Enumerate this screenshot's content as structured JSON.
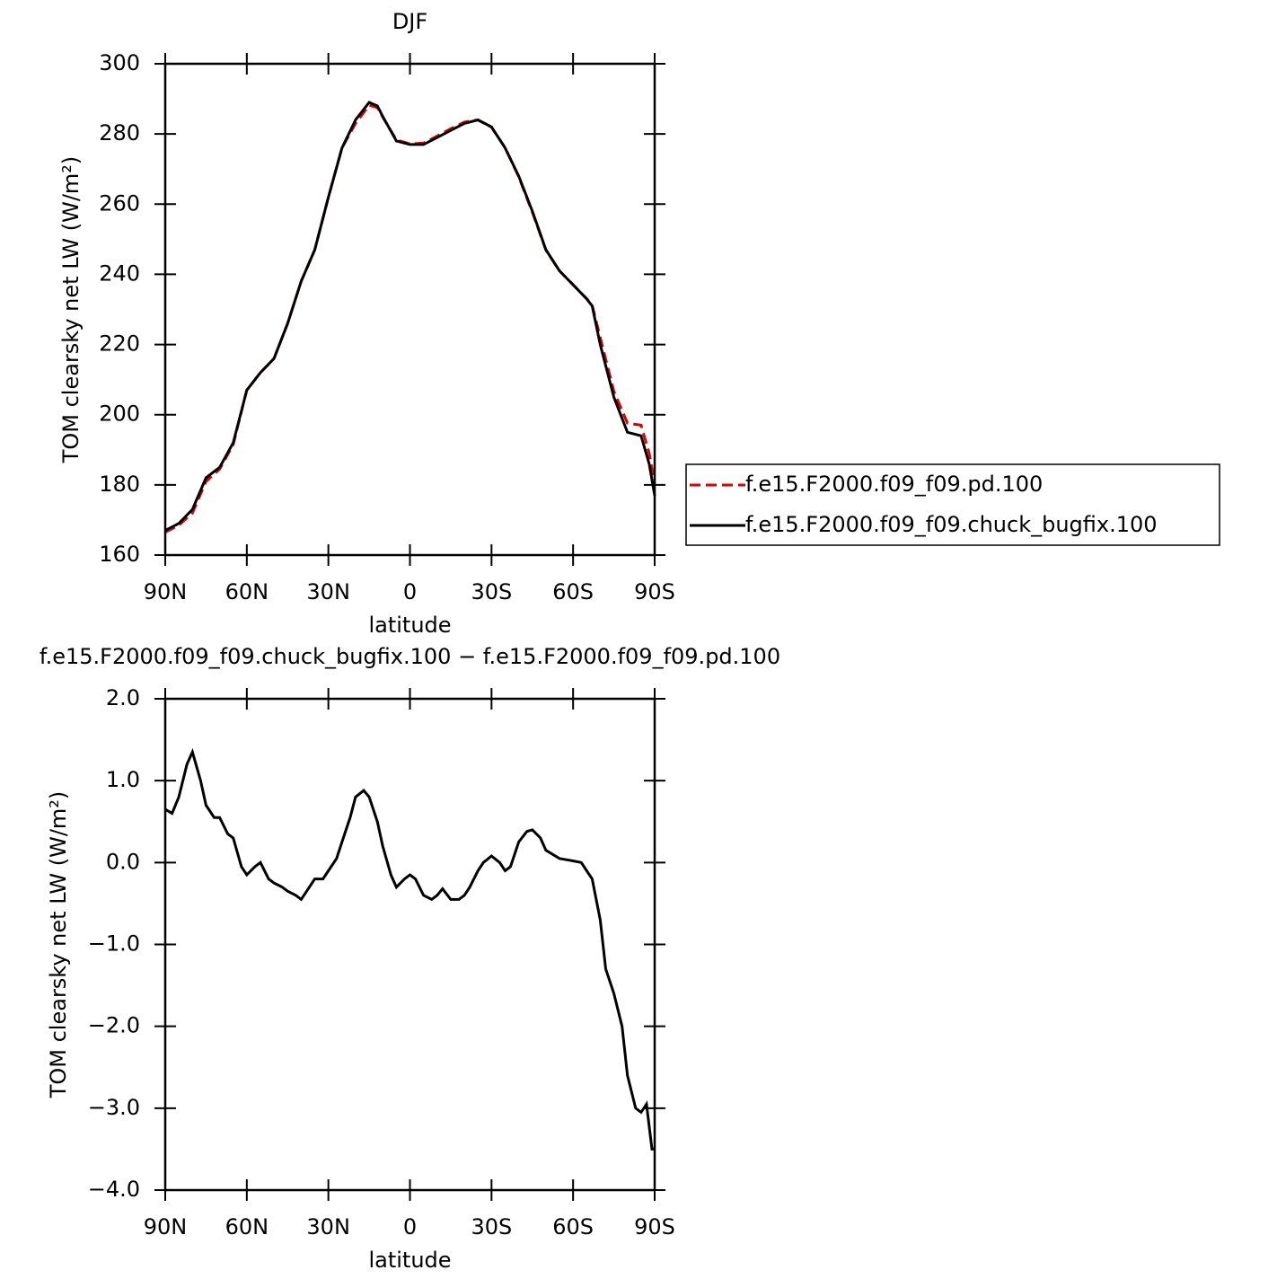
{
  "chart_data": [
    {
      "type": "line",
      "title": "DJF",
      "xlabel": "latitude",
      "ylabel": "TOM clearsky net LW (W/m²)",
      "x": [
        90,
        85,
        80,
        75,
        70,
        65,
        60,
        55,
        50,
        45,
        40,
        35,
        30,
        25,
        20,
        15,
        12,
        10,
        5,
        0,
        -5,
        -10,
        -15,
        -20,
        -25,
        -30,
        -35,
        -40,
        -45,
        -50,
        -55,
        -60,
        -65,
        -67,
        -70,
        -75,
        -80,
        -85,
        -88,
        -90
      ],
      "series": [
        {
          "name": "f.e15.F2000.f09_f09.pd.100",
          "color": "#e00000",
          "style": "dashed",
          "values": [
            166.5,
            168.5,
            172,
            181,
            184.5,
            191.5,
            207,
            212,
            216,
            226,
            238,
            247,
            262,
            276,
            283,
            288.2,
            287.5,
            284.8,
            278.3,
            277.2,
            277.4,
            279.4,
            281.5,
            283.4,
            284,
            281.9,
            276.1,
            267.8,
            257.7,
            246.9,
            241,
            237,
            233.1,
            231.2,
            222,
            206.6,
            197.6,
            197,
            189,
            180.5
          ]
        },
        {
          "name": "f.e15.F2000.f09_f09.chuck_bugfix.100",
          "color": "#000000",
          "style": "solid",
          "values": [
            167,
            169,
            173,
            182,
            185,
            192,
            207,
            212,
            216,
            226,
            238,
            247,
            262,
            276,
            284,
            289,
            288,
            285,
            278,
            277,
            277,
            279,
            281,
            283,
            284,
            282,
            276,
            268,
            258,
            247,
            241,
            237,
            233,
            231,
            220,
            205,
            195,
            194,
            186,
            177
          ]
        }
      ],
      "xlim": [
        90,
        -90
      ],
      "xticks": [
        {
          "value": 90,
          "label": "90N"
        },
        {
          "value": 60,
          "label": "60N"
        },
        {
          "value": 30,
          "label": "30N"
        },
        0,
        {
          "value": -30,
          "label": "30S"
        },
        {
          "value": -60,
          "label": "60S"
        },
        {
          "value": -90,
          "label": "90S"
        }
      ],
      "ylim": [
        160,
        300
      ],
      "yticks": [
        160,
        180,
        200,
        220,
        240,
        260,
        280,
        300
      ],
      "legend": "right"
    },
    {
      "type": "line",
      "title": "f.e15.F2000.f09_f09.chuck_bugfix.100 − f.e15.F2000.f09_f09.pd.100",
      "xlabel": "latitude",
      "ylabel": "TOM clearsky net LW (W/m²)",
      "x": [
        90,
        87.5,
        85,
        82,
        80,
        77,
        75,
        72,
        70,
        67,
        65,
        62,
        60,
        57,
        55,
        52,
        50,
        47,
        45,
        42,
        40,
        37,
        35,
        32,
        30,
        27,
        25,
        22,
        20,
        17,
        15,
        12,
        10,
        7,
        5,
        2,
        0,
        -2,
        -5,
        -8,
        -10,
        -12,
        -15,
        -18,
        -20,
        -22,
        -25,
        -27,
        -30,
        -33,
        -35,
        -37,
        -40,
        -43,
        -45,
        -48,
        -50,
        -55,
        -60,
        -63,
        -65,
        -67,
        -70,
        -72,
        -75,
        -78,
        -80,
        -83,
        -85,
        -87,
        -89,
        -90
      ],
      "values": [
        0.65,
        0.6,
        0.8,
        1.2,
        1.35,
        1.0,
        0.7,
        0.55,
        0.55,
        0.35,
        0.3,
        -0.05,
        -0.15,
        -0.05,
        0.0,
        -0.2,
        -0.25,
        -0.3,
        -0.35,
        -0.4,
        -0.45,
        -0.3,
        -0.2,
        -0.2,
        -0.1,
        0.05,
        0.25,
        0.55,
        0.8,
        0.88,
        0.8,
        0.5,
        0.2,
        -0.15,
        -0.3,
        -0.2,
        -0.15,
        -0.2,
        -0.4,
        -0.45,
        -0.4,
        -0.32,
        -0.45,
        -0.45,
        -0.4,
        -0.3,
        -0.1,
        0.0,
        0.08,
        0.0,
        -0.1,
        -0.05,
        0.25,
        0.38,
        0.4,
        0.3,
        0.15,
        0.05,
        0.02,
        0.0,
        -0.1,
        -0.2,
        -0.7,
        -1.3,
        -1.6,
        -2.0,
        -2.6,
        -3.0,
        -3.05,
        -2.95,
        -3.5,
        -3.5
      ],
      "color": "#000000",
      "xlim": [
        90,
        -90
      ],
      "xticks": [
        {
          "value": 90,
          "label": "90N"
        },
        {
          "value": 60,
          "label": "60N"
        },
        {
          "value": 30,
          "label": "30N"
        },
        0,
        {
          "value": -30,
          "label": "30S"
        },
        {
          "value": -60,
          "label": "60S"
        },
        {
          "value": -90,
          "label": "90S"
        }
      ],
      "ylim": [
        -4,
        2
      ],
      "yticks": [
        {
          "value": -4,
          "label": "−4.0"
        },
        {
          "value": -3,
          "label": "−3.0"
        },
        {
          "value": -2,
          "label": "−2.0"
        },
        {
          "value": -1,
          "label": "−1.0"
        },
        {
          "value": 0,
          "label": "0.0"
        },
        {
          "value": 1,
          "label": "1.0"
        },
        {
          "value": 2,
          "label": "2.0"
        }
      ]
    }
  ]
}
